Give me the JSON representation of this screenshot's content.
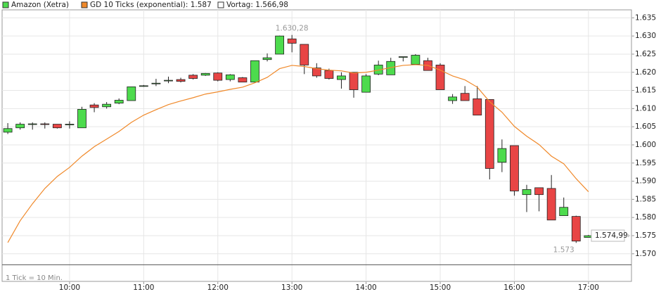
{
  "chart_data": {
    "type": "candlestick",
    "note": "1 Tick = 10 Min.",
    "x": [
      550,
      560,
      570,
      580,
      590,
      600,
      610,
      620,
      630,
      640,
      650,
      660,
      670,
      680,
      690,
      700,
      710,
      720,
      730,
      740,
      750,
      760,
      770,
      780,
      790,
      800,
      810,
      820,
      830,
      840,
      850,
      860,
      870,
      880,
      890,
      900,
      910,
      920,
      930,
      940,
      950,
      960,
      970,
      980,
      990,
      1000,
      1010,
      1020
    ],
    "xlim": [
      545.4,
      1054.8
    ],
    "xticks": [
      {
        "value": 600,
        "label": "10:00"
      },
      {
        "value": 660,
        "label": "11:00"
      },
      {
        "value": 720,
        "label": "12:00"
      },
      {
        "value": 780,
        "label": "13:00"
      },
      {
        "value": 840,
        "label": "14:00"
      },
      {
        "value": 900,
        "label": "15:00"
      },
      {
        "value": 960,
        "label": "16:00"
      },
      {
        "value": 1020,
        "label": "17:00"
      }
    ],
    "ylim": [
      1562.4,
      1637.2
    ],
    "yticks": [
      {
        "value": 1570,
        "label": "1.570"
      },
      {
        "value": 1575,
        "label": "1.575"
      },
      {
        "value": 1580,
        "label": "1.580"
      },
      {
        "value": 1585,
        "label": "1.585"
      },
      {
        "value": 1590,
        "label": "1.590"
      },
      {
        "value": 1595,
        "label": "1.595"
      },
      {
        "value": 1600,
        "label": "1.600"
      },
      {
        "value": 1605,
        "label": "1.605"
      },
      {
        "value": 1610,
        "label": "1.610"
      },
      {
        "value": 1615,
        "label": "1.615"
      },
      {
        "value": 1620,
        "label": "1.620"
      },
      {
        "value": 1625,
        "label": "1.625"
      },
      {
        "value": 1630,
        "label": "1.630"
      },
      {
        "value": 1635,
        "label": "1.635"
      }
    ],
    "grid": true,
    "series": [
      {
        "name": "Amazon (Xetra)",
        "type": "candlestick",
        "up_color": "#4ddb4d",
        "down_color": "#e84545",
        "open": [
          1603.5,
          1604.7,
          1605.8,
          1605.8,
          1605.7,
          1605.7,
          1604.7,
          1611.0,
          1610.5,
          1611.5,
          1612.2,
          1616.3,
          1617.0,
          1617.8,
          1618.0,
          1619.2,
          1619.2,
          1619.8,
          1618.0,
          1618.5,
          1617.3,
          1623.5,
          1625.0,
          1629.2,
          1627.7,
          1621.2,
          1620.5,
          1618.0,
          1620.0,
          1614.5,
          1619.5,
          1619.3,
          1624.3,
          1622.2,
          1623.2,
          1622.0,
          1612.2,
          1614.2,
          1612.7,
          1612.5,
          1595.2,
          1599.8,
          1586.3,
          1588.2,
          1588.0,
          1580.5,
          1580.3,
          1574.5
        ],
        "high": [
          1606.0,
          1606.2,
          1606.2,
          1606.2,
          1605.7,
          1606.5,
          1610.5,
          1611.5,
          1611.8,
          1612.8,
          1616.0,
          1616.5,
          1618.2,
          1618.8,
          1618.5,
          1619.5,
          1619.8,
          1620.0,
          1619.5,
          1618.7,
          1623.2,
          1625.2,
          1630.1,
          1630.28,
          1627.7,
          1622.5,
          1621.0,
          1620.0,
          1620.0,
          1619.5,
          1623.2,
          1624.0,
          1624.3,
          1625.0,
          1624.0,
          1622.5,
          1614.0,
          1616.2,
          1616.2,
          1612.5,
          1601.5,
          1599.8,
          1589.0,
          1588.2,
          1591.7,
          1585.5,
          1580.5,
          1575.2
        ],
        "low": [
          1603.0,
          1604.2,
          1604.2,
          1604.5,
          1604.5,
          1604.5,
          1604.7,
          1609.0,
          1610.0,
          1611.2,
          1612.2,
          1616.0,
          1616.2,
          1617.0,
          1617.2,
          1618.0,
          1619.0,
          1617.5,
          1617.5,
          1617.3,
          1617.3,
          1623.0,
          1625.0,
          1625.5,
          1619.5,
          1618.5,
          1618.0,
          1615.5,
          1613.0,
          1614.5,
          1619.2,
          1619.3,
          1623.0,
          1622.2,
          1620.5,
          1615.2,
          1611.3,
          1612.2,
          1608.2,
          1590.5,
          1592.5,
          1586.0,
          1581.5,
          1581.7,
          1579.3,
          1580.5,
          1573.0,
          1574.5
        ],
        "close": [
          1604.5,
          1605.7,
          1605.8,
          1605.7,
          1604.7,
          1605.7,
          1609.8,
          1610.3,
          1611.2,
          1612.3,
          1616.0,
          1616.3,
          1617.0,
          1617.8,
          1617.5,
          1618.3,
          1619.7,
          1617.8,
          1619.3,
          1617.3,
          1623.2,
          1624.0,
          1630.0,
          1628.0,
          1622.0,
          1619.0,
          1618.3,
          1619.0,
          1615.2,
          1619.0,
          1622.0,
          1623.0,
          1624.3,
          1624.7,
          1620.5,
          1615.2,
          1613.2,
          1612.2,
          1608.2,
          1593.5,
          1599.0,
          1587.3,
          1587.7,
          1586.3,
          1579.3,
          1582.8,
          1573.5,
          1574.99
        ]
      },
      {
        "name": "GD 10 Ticks (exponential): 1.587",
        "type": "line",
        "color": "#f0892a",
        "values": [
          1573.1,
          1579.1,
          1583.8,
          1588.0,
          1591.3,
          1593.8,
          1596.9,
          1599.5,
          1601.6,
          1603.7,
          1606.2,
          1608.2,
          1609.7,
          1611.1,
          1612.1,
          1613.0,
          1614.0,
          1614.6,
          1615.3,
          1615.9,
          1617.1,
          1618.6,
          1621.0,
          1621.9,
          1621.6,
          1621.0,
          1620.6,
          1620.4,
          1619.8,
          1620.0,
          1620.6,
          1621.3,
          1621.9,
          1622.1,
          1621.9,
          1620.6,
          1619.0,
          1617.9,
          1615.9,
          1611.9,
          1609.0,
          1605.1,
          1602.4,
          1600.1,
          1596.9,
          1594.8,
          1590.7,
          1587.1
        ]
      }
    ],
    "vortag": {
      "name": "Vortag: 1.566,98",
      "value": 1566.98,
      "color": "#555555"
    },
    "annotations": [
      {
        "text": "1.630,28",
        "x": 780,
        "y": 1630.28,
        "position": "above"
      },
      {
        "text": "1.573",
        "x": 1000,
        "y": 1573,
        "position": "below"
      }
    ],
    "last_price": {
      "text": "1.574,99",
      "y": 1574.99
    }
  }
}
